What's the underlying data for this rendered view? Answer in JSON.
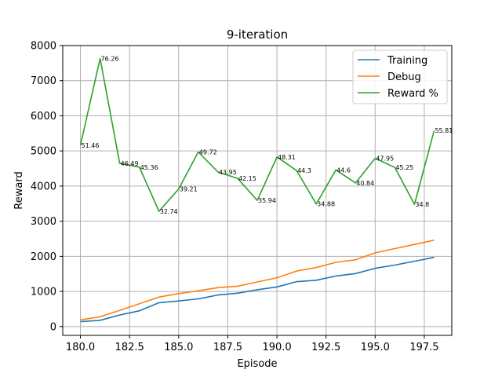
{
  "chart_data": {
    "type": "line",
    "title": "9-iteration",
    "xlabel": "Episode",
    "ylabel": "Reward",
    "xlim": [
      179.1,
      198.9
    ],
    "ylim": [
      -250,
      8000
    ],
    "xticks": [
      "180.0",
      "182.5",
      "185.0",
      "187.5",
      "190.0",
      "192.5",
      "195.0",
      "197.5"
    ],
    "xtick_values": [
      180,
      182.5,
      185,
      187.5,
      190,
      192.5,
      195,
      197.5
    ],
    "yticks": [
      "0",
      "1000",
      "2000",
      "3000",
      "4000",
      "5000",
      "6000",
      "7000",
      "8000"
    ],
    "ytick_values": [
      0,
      1000,
      2000,
      3000,
      4000,
      5000,
      6000,
      7000,
      8000
    ],
    "grid": true,
    "legend_position": "top-right",
    "x": [
      180,
      181,
      182,
      183,
      184,
      185,
      186,
      187,
      188,
      189,
      190,
      191,
      192,
      193,
      194,
      195,
      196,
      197,
      198
    ],
    "series": [
      {
        "name": "Training",
        "color": "#1f77b4",
        "values": [
          140,
          180,
          330,
          450,
          680,
          730,
          790,
          900,
          950,
          1050,
          1130,
          1280,
          1320,
          1440,
          1510,
          1660,
          1750,
          1860,
          1970
        ]
      },
      {
        "name": "Debug",
        "color": "#ff7f0e",
        "values": [
          190,
          280,
          460,
          650,
          840,
          940,
          1020,
          1110,
          1150,
          1270,
          1390,
          1580,
          1680,
          1830,
          1900,
          2100,
          2220,
          2340,
          2460
        ]
      },
      {
        "name": "Reward %",
        "color": "#2ca02c",
        "values": [
          5160,
          7630,
          4650,
          4540,
          3280,
          3920,
          4970,
          4400,
          4220,
          3590,
          4830,
          4440,
          3490,
          4460,
          4090,
          4790,
          4530,
          3480,
          5580
        ],
        "labels": [
          "51.46",
          "76.26",
          "46.49",
          "45.36",
          "32.74",
          "39.21",
          "49.72",
          "43.95",
          "42.15",
          "35.94",
          "48.31",
          "44.3",
          "34.88",
          "44.6",
          "40.84",
          "47.95",
          "45.25",
          "34.8",
          "55.81"
        ]
      }
    ]
  }
}
